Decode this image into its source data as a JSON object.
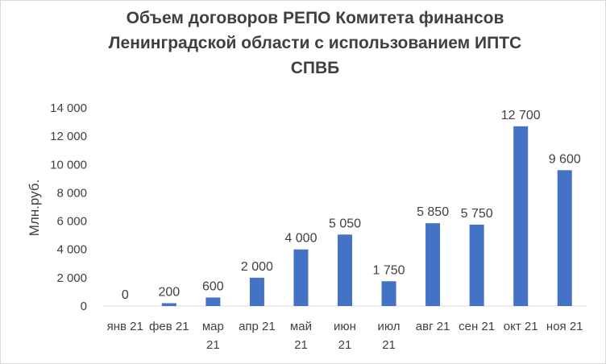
{
  "chart_data": {
    "type": "bar",
    "title_lines": [
      "Объем  договоров РЕПО Комитета финансов",
      "Ленинградской области с использованием ИПТС",
      "СПВБ"
    ],
    "ylabel": "Млн.руб.",
    "categories": [
      [
        "янв 21"
      ],
      [
        "фев 21"
      ],
      [
        "мар",
        "21"
      ],
      [
        "апр 21"
      ],
      [
        "май",
        "21"
      ],
      [
        "июн",
        "21"
      ],
      [
        "июл",
        "21"
      ],
      [
        "авг 21"
      ],
      [
        "сен 21"
      ],
      [
        "окт 21"
      ],
      [
        "ноя 21"
      ]
    ],
    "values": [
      0,
      200,
      600,
      2000,
      4000,
      5050,
      1750,
      5850,
      5750,
      12700,
      9600
    ],
    "data_labels": [
      "0",
      "200",
      "600",
      "2 000",
      "4 000",
      "5 050",
      "1 750",
      "5 850",
      "5 750",
      "12 700",
      "9 600"
    ],
    "yticks": [
      0,
      2000,
      4000,
      6000,
      8000,
      10000,
      12000,
      14000
    ],
    "ytick_labels": [
      "0",
      "2 000",
      "4 000",
      "6 000",
      "8 000",
      "10 000",
      "12 000",
      "14 000"
    ],
    "ylim": [
      0,
      14000
    ],
    "bar_color": "#4472c4",
    "grid": false
  }
}
